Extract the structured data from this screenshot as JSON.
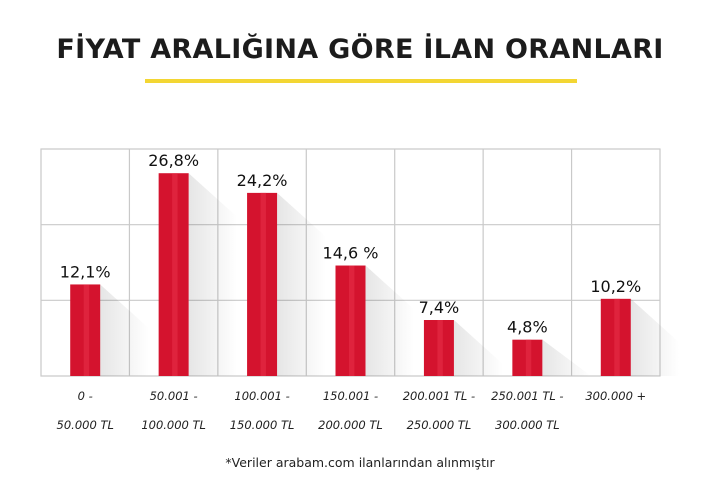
{
  "chart_data": {
    "type": "bar",
    "title": "FİYAT ARALIĞINA GÖRE İLAN ORANLARI",
    "categories": [
      [
        "0 -",
        "50.000 TL"
      ],
      [
        "50.001 -",
        "100.000 TL"
      ],
      [
        "100.001 -",
        "150.000 TL"
      ],
      [
        "150.001 -",
        "200.000 TL"
      ],
      [
        "200.001 TL -",
        "250.000 TL"
      ],
      [
        "250.001 TL -",
        "300.000 TL"
      ],
      [
        "300.000 +"
      ]
    ],
    "values": [
      12.1,
      26.8,
      24.2,
      14.6,
      7.4,
      4.8,
      10.2
    ],
    "value_labels": [
      "12,1%",
      "26,8%",
      "24,2%",
      "14,6 %",
      "7,4%",
      "4,8%",
      "10,2%"
    ],
    "ylim": [
      0,
      30
    ],
    "grid": true,
    "bar_color": "#d4132e",
    "bar_highlight_color": "#e8324a",
    "accent_color": "#f3d633"
  },
  "footnote": "*Veriler arabam.com ilanlarından alınmıştır"
}
